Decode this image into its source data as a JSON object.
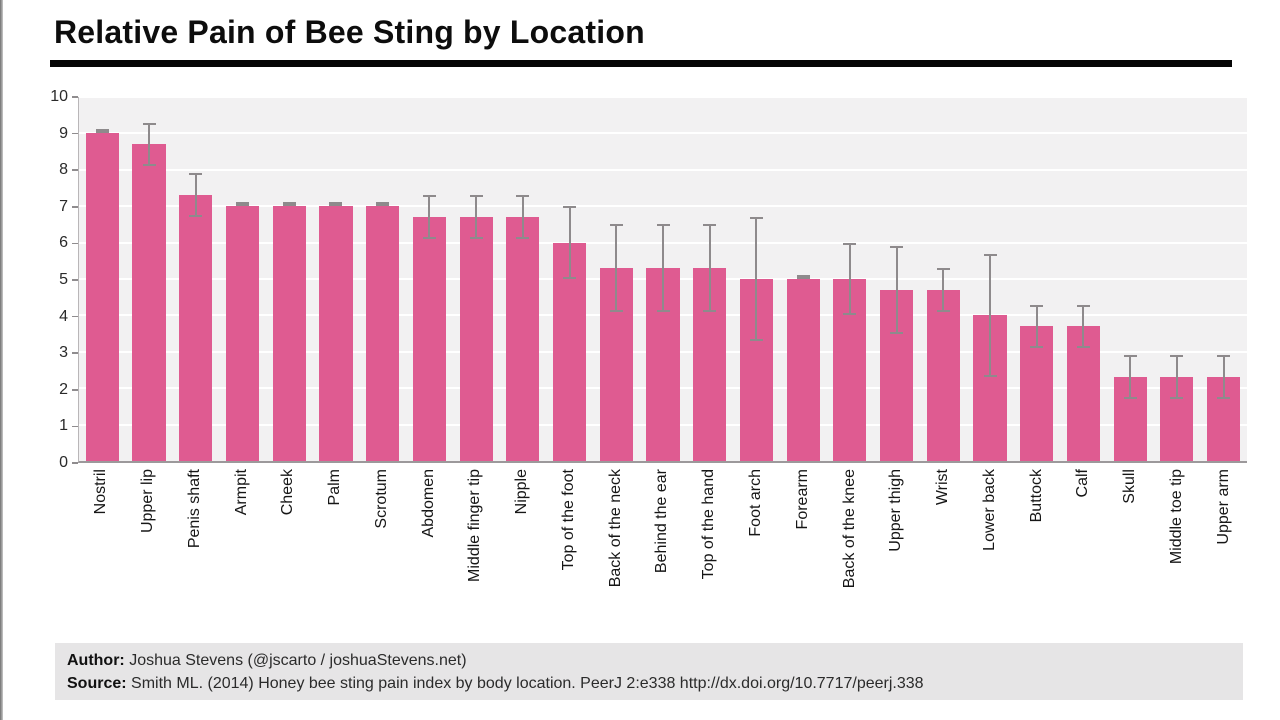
{
  "title": "Relative Pain of Bee Sting by Location",
  "chart_data": {
    "type": "bar",
    "title": "Relative Pain of Bee Sting by Location",
    "categories": [
      "Nostril",
      "Upper lip",
      "Penis shaft",
      "Armpit",
      "Cheek",
      "Palm",
      "Scrotum",
      "Abdomen",
      "Middle finger tip",
      "Nipple",
      "Top of the foot",
      "Back of the neck",
      "Behind the ear",
      "Top of the hand",
      "Foot arch",
      "Forearm",
      "Back of the knee",
      "Upper thigh",
      "Wrist",
      "Lower back",
      "Buttock",
      "Calf",
      "Skull",
      "Middle toe tip",
      "Upper arm"
    ],
    "values": [
      9.0,
      8.7,
      7.3,
      7.0,
      7.0,
      7.0,
      7.0,
      6.7,
      6.7,
      6.7,
      6.0,
      5.3,
      5.3,
      5.3,
      5.0,
      5.0,
      5.0,
      4.7,
      4.7,
      4.0,
      3.7,
      3.7,
      2.3,
      2.3,
      2.3
    ],
    "errors": [
      0,
      0.6,
      0.6,
      0,
      0,
      0,
      0,
      0.6,
      0.6,
      0.6,
      1.0,
      1.2,
      1.2,
      1.2,
      1.7,
      0,
      1.0,
      1.2,
      0.6,
      1.7,
      0.6,
      0.6,
      0.6,
      0.6,
      0.6
    ],
    "xlabel": "",
    "ylabel": "",
    "ylim": [
      0,
      10
    ],
    "yticks": [
      0,
      1,
      2,
      3,
      4,
      5,
      6,
      7,
      8,
      9,
      10
    ],
    "grid": true,
    "legend": false,
    "bar_color": "#df5b91",
    "error_color": "#8e8a8c",
    "plot_bg": "#f2f1f2",
    "grid_color": "#ffffff"
  },
  "footer": {
    "author_label": "Author:",
    "author_text": "Joshua Stevens (@jscarto / joshuaStevens.net)",
    "source_label": "Source:",
    "source_text": "Smith ML. (2014) Honey bee sting pain index by body location. PeerJ 2:e338 http://dx.doi.org/10.7717/peerj.338"
  }
}
